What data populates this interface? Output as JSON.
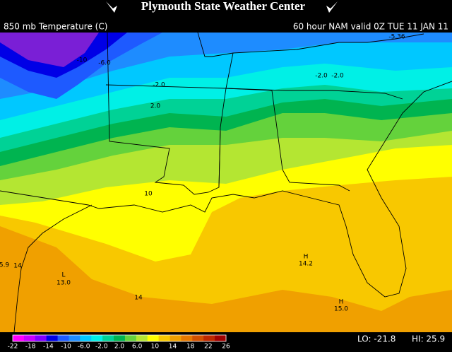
{
  "header": {
    "title": "Plymouth State Weather Center",
    "field": "850 mb Temperature (C)",
    "valid": "60 hour NAM valid 0Z TUE 11 JAN 11"
  },
  "map": {
    "labels": [
      "-10",
      "-6.0",
      "-2.0",
      "2.0",
      "10",
      "14",
      "13.0",
      "L",
      "14",
      "14.2",
      "H",
      "15.0",
      "H",
      "-5.36",
      "-2.0",
      "-2.0",
      "5.9"
    ]
  },
  "legend": {
    "labels": [
      "-22",
      "-18",
      "-14",
      "-10",
      "-6.0",
      "-2.0",
      "2.0",
      "6.0",
      "10",
      "14",
      "18",
      "22",
      "26"
    ],
    "lo": "LO: -21.8",
    "hi": "HI: 25.9"
  }
}
